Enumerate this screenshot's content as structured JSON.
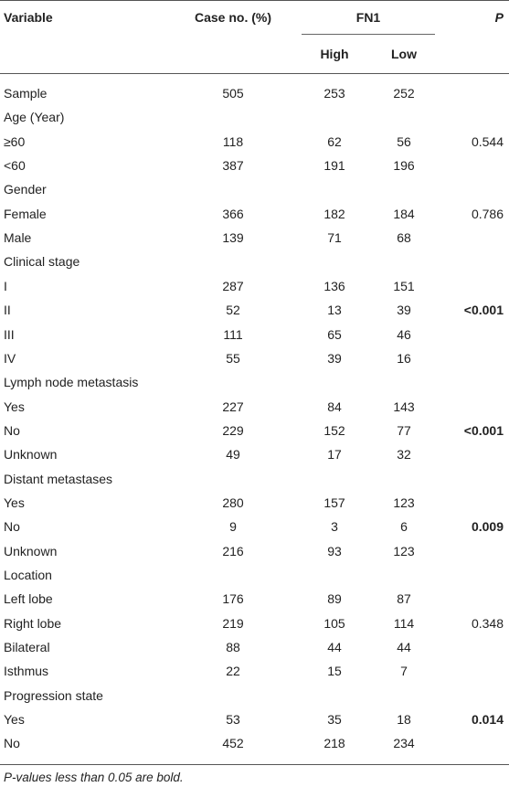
{
  "header": {
    "variable": "Variable",
    "case_no": "Case no. (%)",
    "group": "FN1",
    "high": "High",
    "low": "Low",
    "p": "P"
  },
  "rows": [
    {
      "label": "Sample",
      "case": "505",
      "high": "253",
      "low": "252",
      "p": "",
      "p_bold": false
    },
    {
      "label": "Age (Year)",
      "case": "",
      "high": "",
      "low": "",
      "p": "",
      "p_bold": false
    },
    {
      "label": "≥60",
      "case": "118",
      "high": "62",
      "low": "56",
      "p": "0.544",
      "p_bold": false
    },
    {
      "label": "<60",
      "case": "387",
      "high": "191",
      "low": "196",
      "p": "",
      "p_bold": false
    },
    {
      "label": "Gender",
      "case": "",
      "high": "",
      "low": "",
      "p": "",
      "p_bold": false
    },
    {
      "label": "Female",
      "case": "366",
      "high": "182",
      "low": "184",
      "p": "0.786",
      "p_bold": false
    },
    {
      "label": "Male",
      "case": "139",
      "high": "71",
      "low": "68",
      "p": "",
      "p_bold": false
    },
    {
      "label": "Clinical stage",
      "case": "",
      "high": "",
      "low": "",
      "p": "",
      "p_bold": false
    },
    {
      "label": "I",
      "case": "287",
      "high": "136",
      "low": "151",
      "p": "",
      "p_bold": false
    },
    {
      "label": "II",
      "case": "52",
      "high": "13",
      "low": "39",
      "p": "<0.001",
      "p_bold": true
    },
    {
      "label": "III",
      "case": "111",
      "high": "65",
      "low": "46",
      "p": "",
      "p_bold": false
    },
    {
      "label": "IV",
      "case": "55",
      "high": "39",
      "low": "16",
      "p": "",
      "p_bold": false
    },
    {
      "label": "Lymph node metastasis",
      "case": "",
      "high": "",
      "low": "",
      "p": "",
      "p_bold": false
    },
    {
      "label": "Yes",
      "case": "227",
      "high": "84",
      "low": "143",
      "p": "",
      "p_bold": false
    },
    {
      "label": "No",
      "case": "229",
      "high": "152",
      "low": "77",
      "p": "<0.001",
      "p_bold": true
    },
    {
      "label": "Unknown",
      "case": "49",
      "high": "17",
      "low": "32",
      "p": "",
      "p_bold": false
    },
    {
      "label": "Distant metastases",
      "case": "",
      "high": "",
      "low": "",
      "p": "",
      "p_bold": false
    },
    {
      "label": "Yes",
      "case": "280",
      "high": "157",
      "low": "123",
      "p": "",
      "p_bold": false
    },
    {
      "label": "No",
      "case": "9",
      "high": "3",
      "low": "6",
      "p": "0.009",
      "p_bold": true
    },
    {
      "label": "Unknown",
      "case": "216",
      "high": "93",
      "low": "123",
      "p": "",
      "p_bold": false
    },
    {
      "label": "Location",
      "case": "",
      "high": "",
      "low": "",
      "p": "",
      "p_bold": false
    },
    {
      "label": "Left lobe",
      "case": "176",
      "high": "89",
      "low": "87",
      "p": "",
      "p_bold": false
    },
    {
      "label": "Right lobe",
      "case": "219",
      "high": "105",
      "low": "114",
      "p": "0.348",
      "p_bold": false
    },
    {
      "label": "Bilateral",
      "case": "88",
      "high": "44",
      "low": "44",
      "p": "",
      "p_bold": false
    },
    {
      "label": "Isthmus",
      "case": "22",
      "high": "15",
      "low": "7",
      "p": "",
      "p_bold": false
    },
    {
      "label": "Progression state",
      "case": "",
      "high": "",
      "low": "",
      "p": "",
      "p_bold": false
    },
    {
      "label": "Yes",
      "case": "53",
      "high": "35",
      "low": "18",
      "p": "0.014",
      "p_bold": true
    },
    {
      "label": "No",
      "case": "452",
      "high": "218",
      "low": "234",
      "p": "",
      "p_bold": false
    }
  ],
  "footnote": "P-values less than 0.05 are bold."
}
